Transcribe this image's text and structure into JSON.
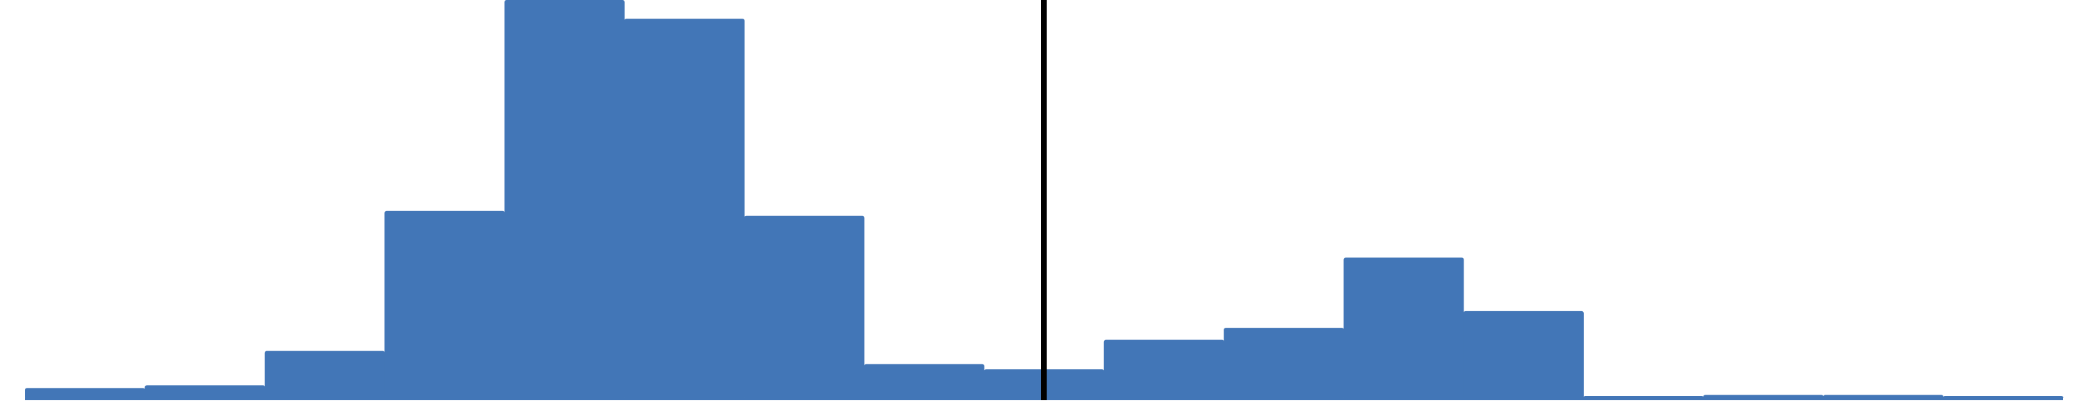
{
  "colors": {
    "bar": "#4276b7",
    "marker_line": "#000000",
    "background": "#ffffff"
  },
  "chart_data": {
    "type": "bar",
    "subtype": "histogram",
    "bins": 17,
    "values": [
      2.7,
      3.4,
      12.0,
      47.1,
      100.0,
      95.3,
      45.9,
      8.7,
      7.4,
      14.8,
      17.8,
      35.4,
      22.0,
      0.7,
      1.0,
      1.0,
      0.7
    ],
    "ylim": [
      0,
      100
    ],
    "reference_line": {
      "bin_position": 8.5
    },
    "grid": false,
    "legend": "none"
  }
}
